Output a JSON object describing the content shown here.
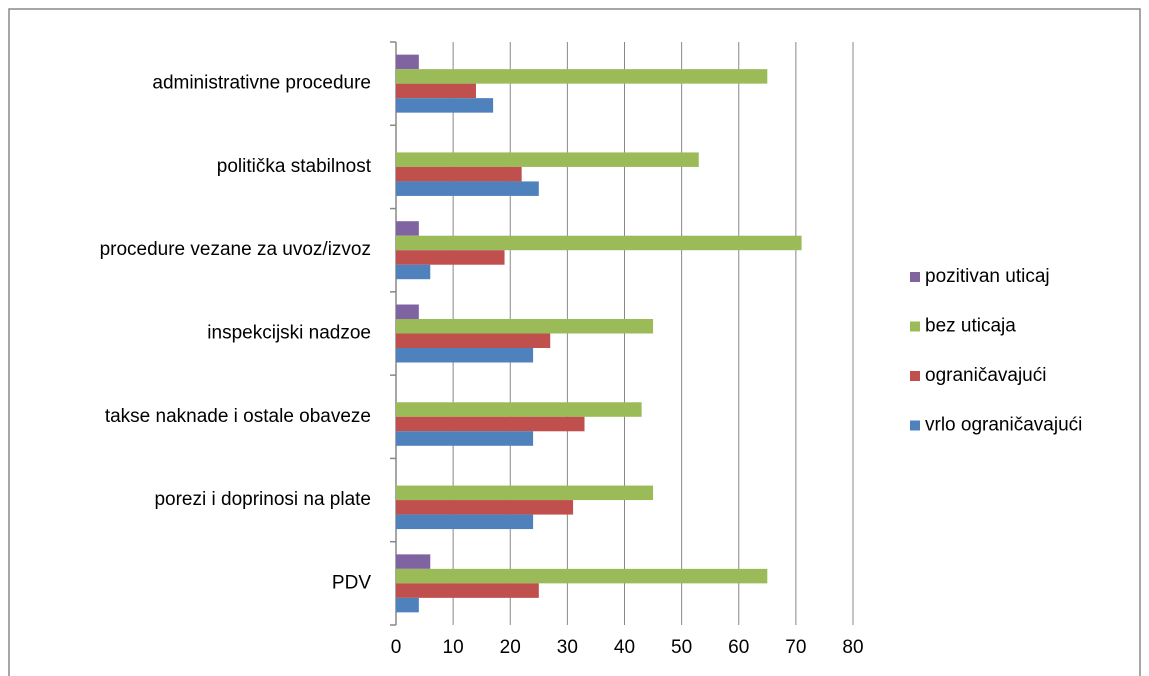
{
  "chart_data": {
    "type": "bar",
    "orientation": "horizontal",
    "categories": [
      "PDV",
      "porezi i doprinosi na plate",
      "takse naknade i ostale obaveze",
      "inspekcijski nadzoe",
      "procedure vezane za uvoz/izvoz",
      "politička stabilnost",
      "administrativne procedure"
    ],
    "series": [
      {
        "name": "pozitivan uticaj",
        "color": "#8064a2",
        "values": [
          6,
          0,
          0,
          4,
          4,
          0,
          4
        ]
      },
      {
        "name": "bez uticaja",
        "color": "#9bbb59",
        "values": [
          65,
          45,
          43,
          45,
          71,
          53,
          65
        ]
      },
      {
        "name": "ograničavajući",
        "color": "#c0504d",
        "values": [
          25,
          31,
          33,
          27,
          19,
          22,
          14
        ]
      },
      {
        "name": "vrlo ograničavajući",
        "color": "#4f81bd",
        "values": [
          4,
          24,
          24,
          24,
          6,
          25,
          17
        ]
      }
    ],
    "xlim": [
      0,
      80
    ],
    "xticks": [
      0,
      10,
      20,
      30,
      40,
      50,
      60,
      70,
      80
    ],
    "grid": true,
    "legend": "right"
  }
}
